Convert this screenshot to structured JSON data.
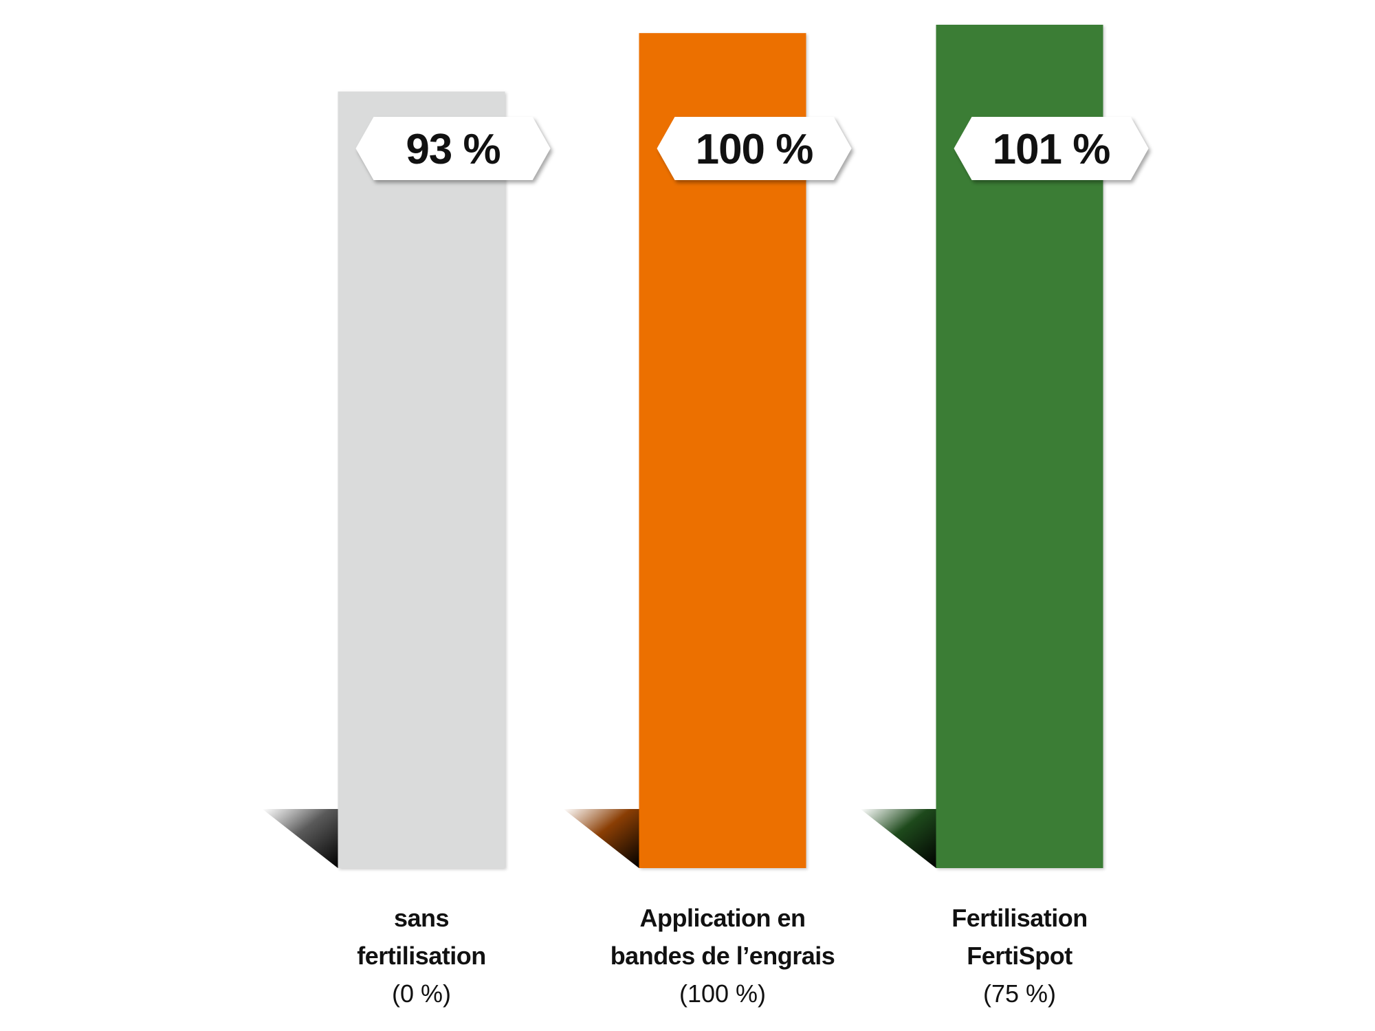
{
  "chart_data": {
    "type": "bar",
    "categories": [
      {
        "lines": [
          "sans",
          "fertilisation"
        ],
        "sub": "(0 %)"
      },
      {
        "lines": [
          "Application en",
          "bandes de l’engrais"
        ],
        "sub": "(100 %)"
      },
      {
        "lines": [
          "Fertilisation",
          "FertiSpot"
        ],
        "sub": "(75 %)"
      }
    ],
    "values": [
      93,
      100,
      101
    ],
    "value_labels": [
      "93 %",
      "100 %",
      "101 %"
    ],
    "colors": [
      "#dadbdb",
      "#ec6f05",
      "#3a7d36"
    ],
    "shadow_colors": [
      "#5a5a5a",
      "#8a3e04",
      "#1e4a1c"
    ],
    "ylim": [
      0,
      101
    ],
    "grid": false,
    "legend": "none",
    "title": "",
    "xlabel": "",
    "ylabel": ""
  }
}
